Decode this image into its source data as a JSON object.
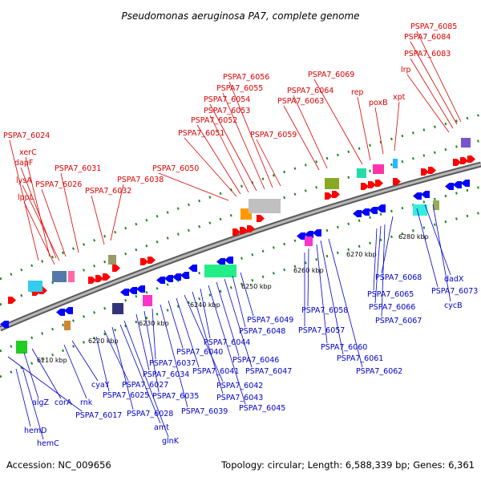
{
  "title": "Pseudomonas aeruginosa PA7, complete genome",
  "footer": {
    "accession": "Accession: NC_009656",
    "summary": "Topology: circular; Length: 6,588,339 bp; Genes: 6,361"
  },
  "colors": {
    "forward_label": "#e00000",
    "reverse_label": "#0000cc",
    "forward_arrow": "#ff0000",
    "reverse_arrow": "#0000ff",
    "backbone": "#888888",
    "tick": "#1a8a1a"
  },
  "scale_labels": [
    "6210 kbp",
    "6220 kbp",
    "6230 kbp",
    "6240 kbp",
    "6250 kbp",
    "6260 kbp",
    "6270 kbp",
    "6280 kbp"
  ],
  "forward_genes": [
    "PSPA7_6024",
    "xerC",
    "dapF",
    "lysA",
    "lppL",
    "PSPA7_6026",
    "PSPA7_6031",
    "PSPA7_6032",
    "PSPA7_6038",
    "PSPA7_6050",
    "PSPA7_6051",
    "PSPA7_6052",
    "PSPA7_6053",
    "PSPA7_6054",
    "PSPA7_6055",
    "PSPA7_6056",
    "PSPA7_6059",
    "PSPA7_6063",
    "PSPA7_6064",
    "PSPA7_6069",
    "rep",
    "poxB",
    "xpt",
    "lrp",
    "PSPA7_6083",
    "PSPA7_6084",
    "PSPA7_6085"
  ],
  "reverse_genes": [
    "algZ",
    "corA",
    "cyaY",
    "rnk",
    "hemD",
    "hemC",
    "PSPA7_6017",
    "PSPA7_6025",
    "PSPA7_6027",
    "PSPA7_6028",
    "amt",
    "glnK",
    "PSPA7_6034",
    "PSPA7_6035",
    "PSPA7_6037",
    "PSPA7_6039",
    "PSPA7_6040",
    "PSPA7_6041",
    "PSPA7_6042",
    "PSPA7_6043",
    "PSPA7_6044",
    "PSPA7_6045",
    "PSPA7_6046",
    "PSPA7_6047",
    "PSPA7_6048",
    "PSPA7_6049",
    "PSPA7_6057",
    "PSPA7_6058",
    "PSPA7_6060",
    "PSPA7_6061",
    "PSPA7_6062",
    "PSPA7_6065",
    "PSPA7_6066",
    "PSPA7_6067",
    "PSPA7_6068",
    "PSPA7_6073",
    "dadX",
    "cycB"
  ]
}
